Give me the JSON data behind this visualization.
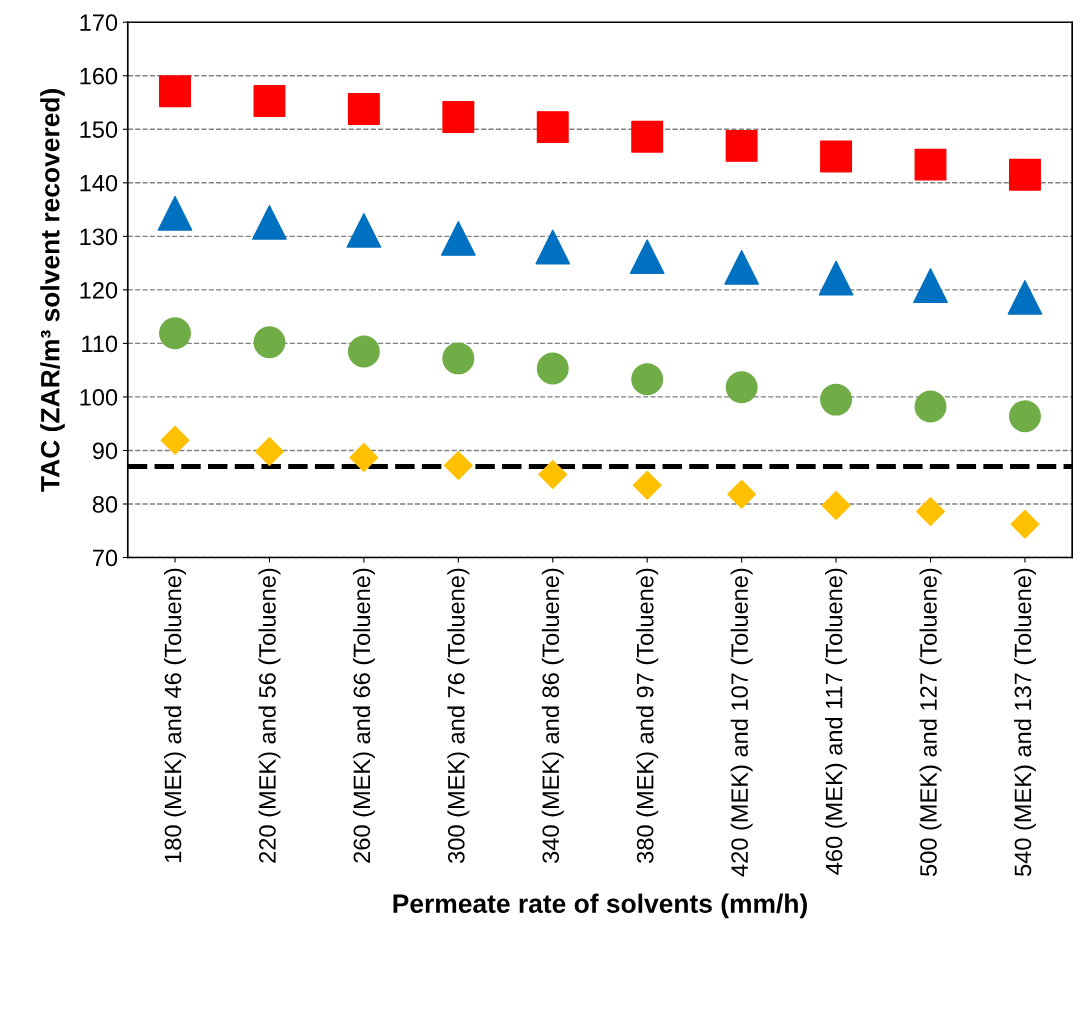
{
  "chart_data": {
    "type": "scatter",
    "xlabel": "Permeate rate of solvents (mm/h)",
    "ylabel": "TAC (ZAR/m³ solvent recovered)",
    "categories": [
      "180 (MEK) and 46 (Toluene)",
      "220 (MEK) and 56 (Toluene)",
      "260 (MEK) and 66 (Toluene)",
      "300 (MEK) and 76 (Toluene)",
      "340 (MEK) and 86 (Toluene)",
      "380 (MEK) and 97 (Toluene)",
      "420 (MEK) and 107 (Toluene)",
      "460 (MEK) and 117 (Toluene)",
      "500 (MEK) and 127 (Toluene)",
      "540 (MEK) and 137 (Toluene)"
    ],
    "series": [
      {
        "color": "#ff0000",
        "marker": "square",
        "values": [
          157.1,
          155.3,
          153.8,
          152.3,
          150.4,
          148.6,
          146.9,
          144.9,
          143.4,
          141.5
        ]
      },
      {
        "color": "#0070c0",
        "marker": "triangle",
        "values": [
          134.3,
          132.6,
          131.1,
          129.6,
          128.0,
          126.2,
          124.2,
          122.2,
          120.8,
          118.6
        ]
      },
      {
        "color": "#70ad47",
        "marker": "circle",
        "values": [
          111.9,
          110.2,
          108.5,
          107.2,
          105.3,
          103.3,
          101.8,
          99.5,
          98.2,
          96.4
        ]
      },
      {
        "color": "#ffc000",
        "marker": "diamond",
        "values": [
          91.9,
          89.8,
          88.7,
          87.2,
          85.5,
          83.5,
          81.8,
          79.7,
          78.6,
          76.2
        ]
      }
    ],
    "ref_lines": [
      {
        "axis": "y",
        "value": 87,
        "label": null,
        "color": "#000000",
        "line_style": "dashed"
      }
    ],
    "ylim": [
      70,
      170
    ],
    "yticks": [
      70,
      80,
      90,
      100,
      110,
      120,
      130,
      140,
      150,
      160,
      170
    ],
    "grid": "y",
    "legend": false
  }
}
